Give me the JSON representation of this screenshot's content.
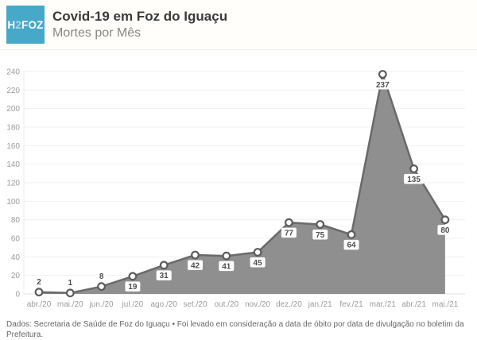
{
  "header": {
    "logo": {
      "part1": "H",
      "part2": "2",
      "part3": "FOZ",
      "bg_color": "#47a8c9",
      "text_color": "#ffffff",
      "accent_color": "#aed7e6"
    },
    "title": "Covid-19 em Foz do Iguaçu",
    "subtitle": "Mortes por Mês"
  },
  "chart_data": {
    "type": "area",
    "title": "Mortes por Mês",
    "categories": [
      "abr./20",
      "mai./20",
      "jun./20",
      "jul./20",
      "ago./20",
      "set./20",
      "out./20",
      "nov./20",
      "dez./20",
      "jan./21",
      "fev./21",
      "mar./21",
      "abr./21",
      "mai./21"
    ],
    "values": [
      2,
      1,
      8,
      19,
      31,
      42,
      41,
      45,
      77,
      75,
      64,
      237,
      135,
      80
    ],
    "xlabel": "",
    "ylabel": "",
    "ylim": [
      0,
      240
    ],
    "y_ticks": [
      0,
      20,
      40,
      60,
      80,
      100,
      120,
      140,
      160,
      180,
      200,
      220,
      240
    ],
    "grid": true,
    "legend": "none",
    "data_labels": true,
    "colors": {
      "area_fill": "#8f8f8f",
      "line": "#6a6a6a",
      "marker_fill": "#ffffff",
      "marker_stroke": "#5c5c5c",
      "label_text": "#4f4f4f",
      "label_bg": "#ffffff",
      "axis_text": "#9b9b9b",
      "gridline": "#f0f0f0",
      "baseline": "#e2e2e2",
      "y_axis_line": "#ececec"
    }
  },
  "footer": {
    "text": "Dados: Secretaria de Saúde de Foz do Iguaçu • Foi levado em consideração a data de óbito por data de divulgação no boletim da Prefeitura."
  }
}
